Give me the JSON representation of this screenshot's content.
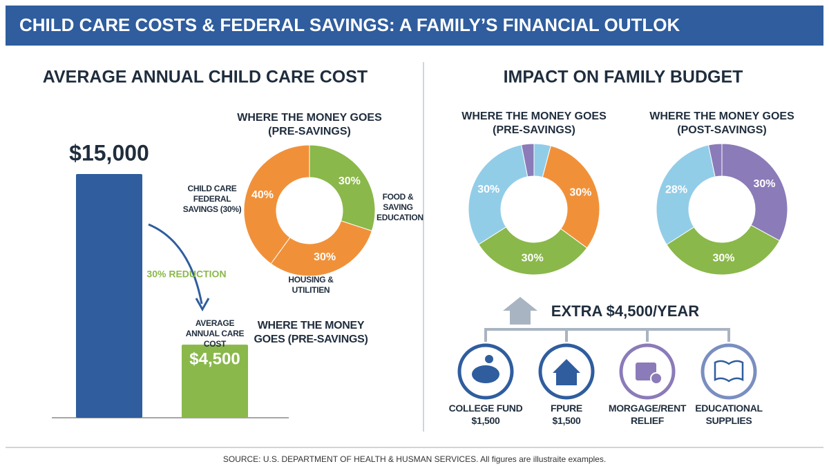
{
  "title": "CHILD CARE COSTS & FEDERAL SAVINGS: A FAMILY’S FINANCIAL OUTLOK",
  "right_panel_title": "IMPACT ON FAMILY BUDGET",
  "chart_data": [
    {
      "type": "bar",
      "title": "AVERAGE ANNUAL CHILD CARE COST",
      "categories": [
        null,
        "AVERAGE ANNUAL CARE COST"
      ],
      "values": [
        15000,
        4500
      ],
      "value_labels": [
        "$15,000",
        "$4,500"
      ],
      "colors": [
        "#2f5d9e",
        "#8ab84a"
      ],
      "annotations": [
        "30% REDUCTION",
        "WHERE THE MONEY GOES (PRE-SAVINGS)"
      ]
    },
    {
      "type": "pie",
      "title": "WHERE THE MONEY GOES",
      "subtitle": "(PRE-SAVINGS)",
      "categories": [
        "FOOD & SAVING EDUCATION",
        "HOUSING & UTILITIEN",
        "CHILD CARE FEDERAL SAVINGS (30%)"
      ],
      "values": [
        30,
        30,
        40
      ],
      "value_labels": [
        "30%",
        "30%",
        "40%"
      ],
      "colors": [
        "#8ab84a",
        "#f0913a",
        "#f0913a"
      ]
    },
    {
      "type": "pie",
      "title": "WHERE THE MONEY GOES",
      "subtitle": "(PRE-SAVINGS)",
      "values": [
        4,
        30,
        30,
        30,
        3
      ],
      "value_labels": [
        null,
        "30%",
        "30%",
        "30%",
        null
      ],
      "colors": [
        "#92cde8",
        "#f0913a",
        "#8ab84a",
        "#92cde8",
        "#8b7bb8"
      ]
    },
    {
      "type": "pie",
      "title": "WHERE THE MONEY GOES",
      "subtitle": "(POST-SAVINGS)",
      "values": [
        30,
        30,
        28,
        3
      ],
      "value_labels": [
        "30%",
        "30%",
        "28%",
        null
      ],
      "colors": [
        "#8b7bb8",
        "#8ab84a",
        "#92cde8",
        "#8b7bb8"
      ]
    }
  ],
  "extra": "EXTRA $4,500/YEAR",
  "items": [
    {
      "label": "COLLEGE FUND",
      "amount": "$1,500"
    },
    {
      "label": "FPURE",
      "amount": "$1,500"
    },
    {
      "label": "MORGAGE/RENT RELIEF"
    },
    {
      "label": "EDUCATIONAL SUPPLIES"
    }
  ],
  "source": "SOURCE: U.S. DEPARTMENT OF HEALTH & HUSMAN SERVICES. All figures are illustraite examples."
}
